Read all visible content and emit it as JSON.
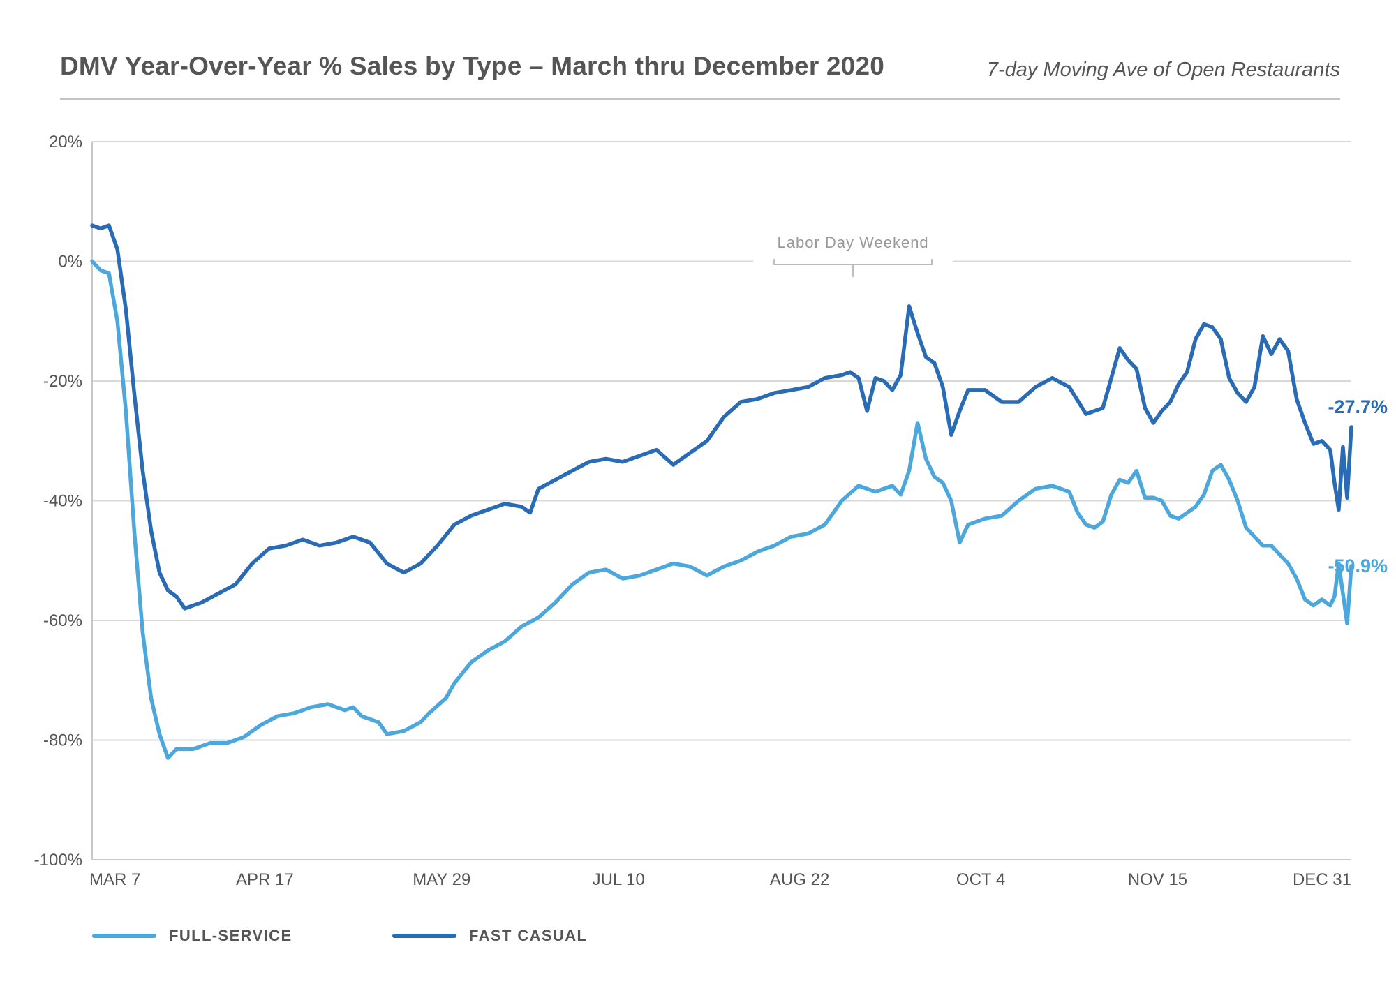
{
  "header": {
    "title": "DMV Year-Over-Year % Sales by Type – March thru December 2020",
    "subtitle": "7-day Moving Ave of Open Restaurants"
  },
  "colors": {
    "full_service": "#4ca8dc",
    "fast_casual": "#2a6bb6",
    "grid": "#d9d9d9",
    "axis": "#c8c8c8",
    "text": "#555555",
    "annotation": "#999999"
  },
  "legend": [
    {
      "name": "FULL-SERVICE",
      "color": "#4ca8dc"
    },
    {
      "name": "FAST CASUAL",
      "color": "#2a6bb6"
    }
  ],
  "chart_data": {
    "type": "line",
    "title": "DMV Year-Over-Year % Sales by Type – March thru December 2020",
    "subtitle": "7-day Moving Ave of Open Restaurants",
    "x_tick_labels": [
      "MAR 7",
      "APR 17",
      "MAY 29",
      "JUL 10",
      "AUG 22",
      "OCT 4",
      "NOV 15",
      "DEC 31"
    ],
    "x_tick_dates": [
      "2020-03-07",
      "2020-04-17",
      "2020-05-29",
      "2020-07-10",
      "2020-08-22",
      "2020-10-04",
      "2020-11-15",
      "2020-12-31"
    ],
    "y_tick_labels": [
      "20%",
      "0%",
      "-20%",
      "-40%",
      "-60%",
      "-80%",
      "-100%"
    ],
    "y_ticks": [
      20,
      0,
      -20,
      -40,
      -60,
      -80,
      -100
    ],
    "ylim": [
      -100,
      20
    ],
    "xlim": [
      "2020-03-07",
      "2020-12-31"
    ],
    "grid": true,
    "legend_position": "bottom-left",
    "annotation": {
      "text": "Labor Day Weekend",
      "date": "2020-09-05"
    },
    "series": [
      {
        "name": "FULL-SERVICE",
        "end_label": "-50.9%",
        "points": [
          [
            "2020-03-07",
            0
          ],
          [
            "2020-03-09",
            -1.5
          ],
          [
            "2020-03-11",
            -2
          ],
          [
            "2020-03-13",
            -10
          ],
          [
            "2020-03-15",
            -25
          ],
          [
            "2020-03-17",
            -45
          ],
          [
            "2020-03-19",
            -62
          ],
          [
            "2020-03-21",
            -73
          ],
          [
            "2020-03-23",
            -79
          ],
          [
            "2020-03-25",
            -83
          ],
          [
            "2020-03-27",
            -81.5
          ],
          [
            "2020-03-31",
            -81.5
          ],
          [
            "2020-04-04",
            -80.5
          ],
          [
            "2020-04-08",
            -80.5
          ],
          [
            "2020-04-12",
            -79.5
          ],
          [
            "2020-04-16",
            -77.5
          ],
          [
            "2020-04-20",
            -76
          ],
          [
            "2020-04-24",
            -75.5
          ],
          [
            "2020-04-28",
            -74.5
          ],
          [
            "2020-05-02",
            -74
          ],
          [
            "2020-05-06",
            -75
          ],
          [
            "2020-05-08",
            -74.5
          ],
          [
            "2020-05-10",
            -76
          ],
          [
            "2020-05-14",
            -77
          ],
          [
            "2020-05-16",
            -79
          ],
          [
            "2020-05-20",
            -78.5
          ],
          [
            "2020-05-24",
            -77
          ],
          [
            "2020-05-26",
            -75.5
          ],
          [
            "2020-05-30",
            -73
          ],
          [
            "2020-06-01",
            -70.5
          ],
          [
            "2020-06-05",
            -67
          ],
          [
            "2020-06-09",
            -65
          ],
          [
            "2020-06-13",
            -63.5
          ],
          [
            "2020-06-17",
            -61
          ],
          [
            "2020-06-21",
            -59.5
          ],
          [
            "2020-06-25",
            -57
          ],
          [
            "2020-06-29",
            -54
          ],
          [
            "2020-07-03",
            -52
          ],
          [
            "2020-07-07",
            -51.5
          ],
          [
            "2020-07-11",
            -53
          ],
          [
            "2020-07-15",
            -52.5
          ],
          [
            "2020-07-19",
            -51.5
          ],
          [
            "2020-07-23",
            -50.5
          ],
          [
            "2020-07-27",
            -51
          ],
          [
            "2020-07-31",
            -52.5
          ],
          [
            "2020-08-04",
            -51
          ],
          [
            "2020-08-08",
            -50
          ],
          [
            "2020-08-12",
            -48.5
          ],
          [
            "2020-08-16",
            -47.5
          ],
          [
            "2020-08-20",
            -46
          ],
          [
            "2020-08-24",
            -45.5
          ],
          [
            "2020-08-28",
            -44
          ],
          [
            "2020-09-01",
            -40
          ],
          [
            "2020-09-05",
            -37.5
          ],
          [
            "2020-09-09",
            -38.5
          ],
          [
            "2020-09-13",
            -37.5
          ],
          [
            "2020-09-15",
            -39
          ],
          [
            "2020-09-17",
            -35
          ],
          [
            "2020-09-19",
            -27
          ],
          [
            "2020-09-21",
            -33
          ],
          [
            "2020-09-23",
            -36
          ],
          [
            "2020-09-25",
            -37
          ],
          [
            "2020-09-27",
            -40
          ],
          [
            "2020-09-29",
            -47
          ],
          [
            "2020-10-01",
            -44
          ],
          [
            "2020-10-05",
            -43
          ],
          [
            "2020-10-09",
            -42.5
          ],
          [
            "2020-10-13",
            -40
          ],
          [
            "2020-10-17",
            -38
          ],
          [
            "2020-10-21",
            -37.5
          ],
          [
            "2020-10-25",
            -38.5
          ],
          [
            "2020-10-27",
            -42
          ],
          [
            "2020-10-29",
            -44
          ],
          [
            "2020-10-31",
            -44.5
          ],
          [
            "2020-11-02",
            -43.5
          ],
          [
            "2020-11-04",
            -39
          ],
          [
            "2020-11-06",
            -36.5
          ],
          [
            "2020-11-08",
            -37
          ],
          [
            "2020-11-10",
            -35
          ],
          [
            "2020-11-12",
            -39.5
          ],
          [
            "2020-11-14",
            -39.5
          ],
          [
            "2020-11-16",
            -40
          ],
          [
            "2020-11-18",
            -42.5
          ],
          [
            "2020-11-20",
            -43
          ],
          [
            "2020-11-22",
            -42
          ],
          [
            "2020-11-24",
            -41
          ],
          [
            "2020-11-26",
            -39
          ],
          [
            "2020-11-28",
            -35
          ],
          [
            "2020-11-30",
            -34
          ],
          [
            "2020-12-02",
            -36.5
          ],
          [
            "2020-12-04",
            -40
          ],
          [
            "2020-12-06",
            -44.5
          ],
          [
            "2020-12-08",
            -46
          ],
          [
            "2020-12-10",
            -47.5
          ],
          [
            "2020-12-12",
            -47.5
          ],
          [
            "2020-12-14",
            -49
          ],
          [
            "2020-12-16",
            -50.5
          ],
          [
            "2020-12-18",
            -53
          ],
          [
            "2020-12-20",
            -56.5
          ],
          [
            "2020-12-22",
            -57.5
          ],
          [
            "2020-12-24",
            -56.5
          ],
          [
            "2020-12-26",
            -57.5
          ],
          [
            "2020-12-27",
            -56
          ],
          [
            "2020-12-28",
            -50.5
          ],
          [
            "2020-12-29",
            -55.5
          ],
          [
            "2020-12-30",
            -60.5
          ],
          [
            "2020-12-31",
            -50.9
          ]
        ]
      },
      {
        "name": "FAST CASUAL",
        "end_label": "-27.7%",
        "points": [
          [
            "2020-03-07",
            6
          ],
          [
            "2020-03-09",
            5.5
          ],
          [
            "2020-03-11",
            6
          ],
          [
            "2020-03-13",
            2
          ],
          [
            "2020-03-15",
            -8
          ],
          [
            "2020-03-17",
            -22
          ],
          [
            "2020-03-19",
            -35
          ],
          [
            "2020-03-21",
            -45
          ],
          [
            "2020-03-23",
            -52
          ],
          [
            "2020-03-25",
            -55
          ],
          [
            "2020-03-27",
            -56
          ],
          [
            "2020-03-29",
            -58
          ],
          [
            "2020-04-02",
            -57
          ],
          [
            "2020-04-06",
            -55.5
          ],
          [
            "2020-04-10",
            -54
          ],
          [
            "2020-04-14",
            -50.5
          ],
          [
            "2020-04-18",
            -48
          ],
          [
            "2020-04-22",
            -47.5
          ],
          [
            "2020-04-26",
            -46.5
          ],
          [
            "2020-04-30",
            -47.5
          ],
          [
            "2020-05-04",
            -47
          ],
          [
            "2020-05-08",
            -46
          ],
          [
            "2020-05-12",
            -47
          ],
          [
            "2020-05-16",
            -50.5
          ],
          [
            "2020-05-20",
            -52
          ],
          [
            "2020-05-24",
            -50.5
          ],
          [
            "2020-05-28",
            -47.5
          ],
          [
            "2020-06-01",
            -44
          ],
          [
            "2020-06-05",
            -42.5
          ],
          [
            "2020-06-09",
            -41.5
          ],
          [
            "2020-06-13",
            -40.5
          ],
          [
            "2020-06-17",
            -41
          ],
          [
            "2020-06-19",
            -42
          ],
          [
            "2020-06-21",
            -38
          ],
          [
            "2020-06-25",
            -36.5
          ],
          [
            "2020-06-29",
            -35
          ],
          [
            "2020-07-03",
            -33.5
          ],
          [
            "2020-07-07",
            -33
          ],
          [
            "2020-07-11",
            -33.5
          ],
          [
            "2020-07-15",
            -32.5
          ],
          [
            "2020-07-19",
            -31.5
          ],
          [
            "2020-07-23",
            -34
          ],
          [
            "2020-07-27",
            -32
          ],
          [
            "2020-07-31",
            -30
          ],
          [
            "2020-08-04",
            -26
          ],
          [
            "2020-08-08",
            -23.5
          ],
          [
            "2020-08-12",
            -23
          ],
          [
            "2020-08-16",
            -22
          ],
          [
            "2020-08-20",
            -21.5
          ],
          [
            "2020-08-24",
            -21
          ],
          [
            "2020-08-28",
            -19.5
          ],
          [
            "2020-09-01",
            -19
          ],
          [
            "2020-09-03",
            -18.5
          ],
          [
            "2020-09-05",
            -19.5
          ],
          [
            "2020-09-07",
            -25
          ],
          [
            "2020-09-09",
            -19.5
          ],
          [
            "2020-09-11",
            -20
          ],
          [
            "2020-09-13",
            -21.5
          ],
          [
            "2020-09-15",
            -19
          ],
          [
            "2020-09-17",
            -7.5
          ],
          [
            "2020-09-19",
            -12
          ],
          [
            "2020-09-21",
            -16
          ],
          [
            "2020-09-23",
            -17
          ],
          [
            "2020-09-25",
            -21
          ],
          [
            "2020-09-27",
            -29
          ],
          [
            "2020-09-29",
            -25
          ],
          [
            "2020-10-01",
            -21.5
          ],
          [
            "2020-10-05",
            -21.5
          ],
          [
            "2020-10-09",
            -23.5
          ],
          [
            "2020-10-13",
            -23.5
          ],
          [
            "2020-10-17",
            -21
          ],
          [
            "2020-10-21",
            -19.5
          ],
          [
            "2020-10-25",
            -21
          ],
          [
            "2020-10-29",
            -25.5
          ],
          [
            "2020-11-02",
            -24.5
          ],
          [
            "2020-11-04",
            -19.5
          ],
          [
            "2020-11-06",
            -14.5
          ],
          [
            "2020-11-08",
            -16.5
          ],
          [
            "2020-11-10",
            -18
          ],
          [
            "2020-11-12",
            -24.5
          ],
          [
            "2020-11-14",
            -27
          ],
          [
            "2020-11-16",
            -25
          ],
          [
            "2020-11-18",
            -23.5
          ],
          [
            "2020-11-20",
            -20.5
          ],
          [
            "2020-11-22",
            -18.5
          ],
          [
            "2020-11-24",
            -13
          ],
          [
            "2020-11-26",
            -10.5
          ],
          [
            "2020-11-28",
            -11
          ],
          [
            "2020-11-30",
            -13
          ],
          [
            "2020-12-02",
            -19.5
          ],
          [
            "2020-12-04",
            -22
          ],
          [
            "2020-12-06",
            -23.5
          ],
          [
            "2020-12-08",
            -21
          ],
          [
            "2020-12-10",
            -12.5
          ],
          [
            "2020-12-12",
            -15.5
          ],
          [
            "2020-12-14",
            -13
          ],
          [
            "2020-12-16",
            -15
          ],
          [
            "2020-12-18",
            -23
          ],
          [
            "2020-12-20",
            -27
          ],
          [
            "2020-12-22",
            -30.5
          ],
          [
            "2020-12-24",
            -30
          ],
          [
            "2020-12-26",
            -31.5
          ],
          [
            "2020-12-27",
            -37
          ],
          [
            "2020-12-28",
            -41.5
          ],
          [
            "2020-12-29",
            -31
          ],
          [
            "2020-12-30",
            -39.5
          ],
          [
            "2020-12-31",
            -27.7
          ]
        ]
      }
    ]
  }
}
